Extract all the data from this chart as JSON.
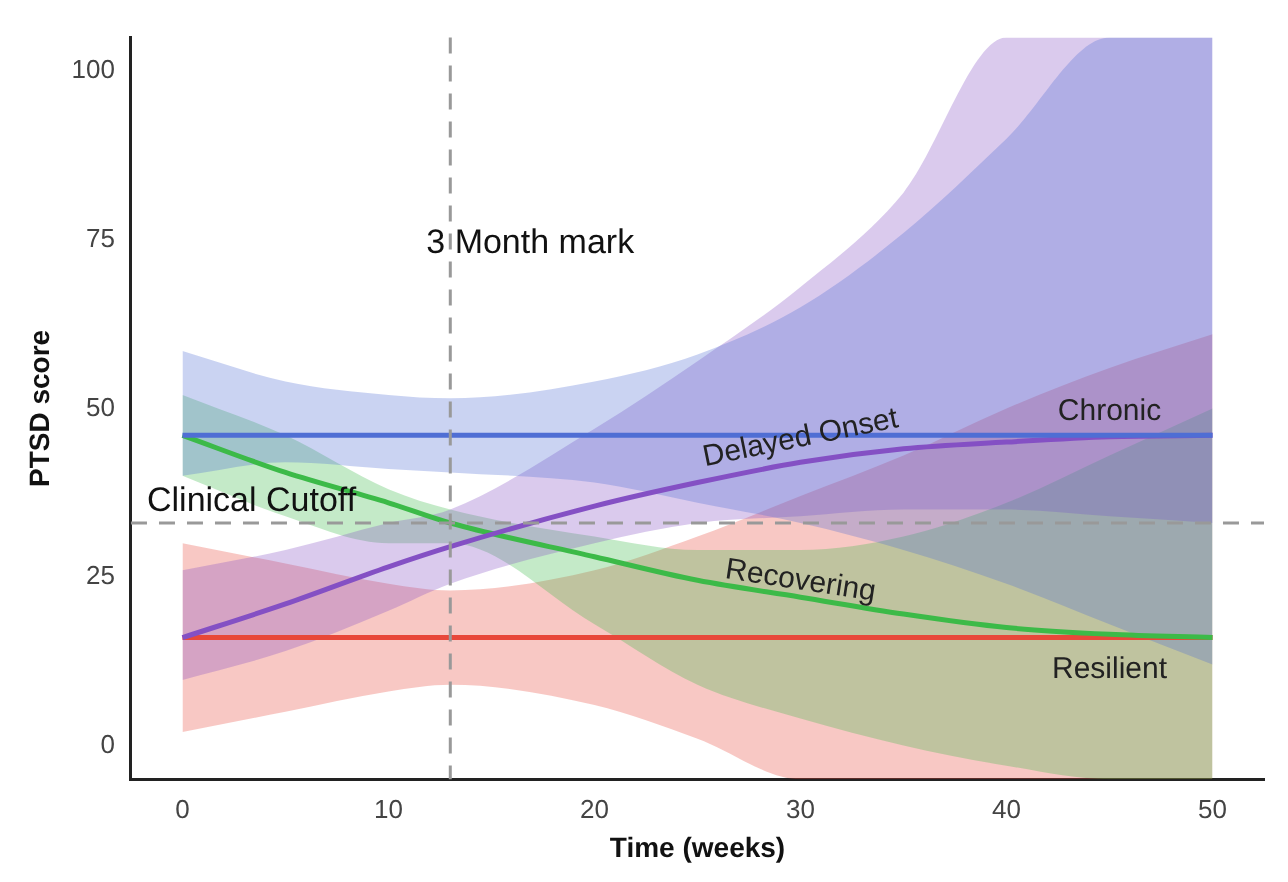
{
  "chart_data": {
    "type": "line",
    "xlabel": "Time (weeks)",
    "ylabel": "PTSD score",
    "x": [
      0,
      5,
      10,
      13,
      20,
      25,
      30,
      35,
      40,
      45,
      50
    ],
    "xlim": [
      -2.5,
      52.5
    ],
    "ylim": [
      -5,
      105
    ],
    "xticks": [
      0,
      10,
      20,
      30,
      40,
      50
    ],
    "yticks": [
      0,
      25,
      50,
      75,
      100
    ],
    "grid": false,
    "legend": false,
    "marker": "none",
    "line_style": "solid",
    "series": [
      {
        "name": "Chronic",
        "color": "#4f6ed4",
        "values": [
          46,
          46,
          46,
          46,
          46,
          46,
          46,
          46,
          46,
          46,
          46
        ],
        "lower": [
          40,
          42,
          41,
          40.5,
          39,
          36,
          33,
          29,
          24,
          18,
          12
        ],
        "upper": [
          58.5,
          54,
          52,
          51.5,
          54,
          58,
          65,
          76,
          90,
          105,
          105
        ]
      },
      {
        "name": "Delayed Onset",
        "color": "#8450c4",
        "values": [
          16,
          21,
          26.5,
          29.5,
          35.5,
          39,
          42,
          44,
          45,
          45.8,
          46
        ],
        "lower": [
          9.7,
          14,
          20,
          24,
          30,
          33,
          34,
          35,
          35,
          34,
          33
        ],
        "upper": [
          26,
          29,
          33,
          35,
          47,
          57,
          68,
          82,
          105,
          105,
          105
        ]
      },
      {
        "name": "Recovering",
        "color": "#3cba48",
        "values": [
          46,
          40.5,
          36,
          33,
          28,
          24.5,
          22,
          19.5,
          17.5,
          16.5,
          16
        ],
        "lower": [
          40,
          34,
          30,
          30,
          18,
          9,
          4,
          0,
          -3,
          -5,
          -5
        ],
        "upper": [
          52,
          46,
          38,
          35,
          31,
          29,
          29,
          31,
          36,
          43,
          50
        ]
      },
      {
        "name": "Resilient",
        "color": "#e8483a",
        "values": [
          16,
          16,
          16,
          16,
          16,
          16,
          16,
          16,
          16,
          16,
          16
        ],
        "lower": [
          2,
          5,
          8,
          9,
          6,
          1,
          -5,
          -5,
          -5,
          -5,
          -5
        ],
        "upper": [
          30,
          27,
          24,
          23,
          26,
          31,
          37,
          43,
          50,
          56,
          61
        ]
      }
    ],
    "ref_lines": [
      {
        "axis": "x",
        "value": 13,
        "label": "3 Month mark",
        "color": "#999999",
        "line_style": "dashed"
      },
      {
        "axis": "y",
        "value": 33,
        "label": "Clinical Cutoff",
        "color": "#999999",
        "line_style": "dashed"
      }
    ]
  }
}
